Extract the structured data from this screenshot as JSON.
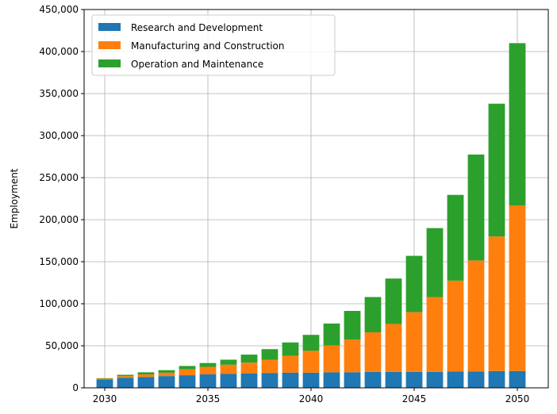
{
  "chart_data": {
    "type": "bar",
    "stacked": true,
    "x": [
      2030,
      2031,
      2032,
      2033,
      2034,
      2035,
      2036,
      2037,
      2038,
      2039,
      2040,
      2041,
      2042,
      2043,
      2044,
      2045,
      2046,
      2047,
      2048,
      2049,
      2050
    ],
    "series": [
      {
        "name": "Research and Development",
        "color": "#1f77b4",
        "values": [
          10000,
          12000,
          13000,
          14000,
          15000,
          16000,
          16500,
          17000,
          17500,
          18000,
          18000,
          18500,
          18500,
          19000,
          19000,
          19000,
          19000,
          19500,
          19500,
          20000,
          20000
        ]
      },
      {
        "name": "Manufacturing and Construction",
        "color": "#ff7f0e",
        "values": [
          1000,
          2000,
          3000,
          4000,
          7000,
          9000,
          11000,
          13000,
          16000,
          20000,
          26000,
          32000,
          39000,
          47000,
          57000,
          71000,
          89000,
          108000,
          132000,
          160000,
          197000
        ]
      },
      {
        "name": "Operation and Maintenance",
        "color": "#2ca02c",
        "values": [
          500,
          1500,
          2500,
          3000,
          4000,
          4500,
          6000,
          9500,
          12500,
          16000,
          19000,
          26000,
          34000,
          42000,
          54000,
          67000,
          82000,
          102000,
          126000,
          158000,
          193000
        ]
      }
    ],
    "x_ticks": [
      2030,
      2035,
      2040,
      2045,
      2050
    ],
    "y_ticks": [
      0,
      50000,
      100000,
      150000,
      200000,
      250000,
      300000,
      350000,
      400000,
      450000
    ],
    "y_tick_labels": [
      "0",
      "50,000",
      "100,000",
      "150,000",
      "200,000",
      "250,000",
      "300,000",
      "350,000",
      "400,000",
      "450,000"
    ],
    "xlim": [
      2029,
      2051.5
    ],
    "ylim": [
      0,
      450000
    ],
    "xlabel": "",
    "ylabel": "Employment",
    "title": "",
    "grid": true,
    "legend_position": "upper-left"
  }
}
